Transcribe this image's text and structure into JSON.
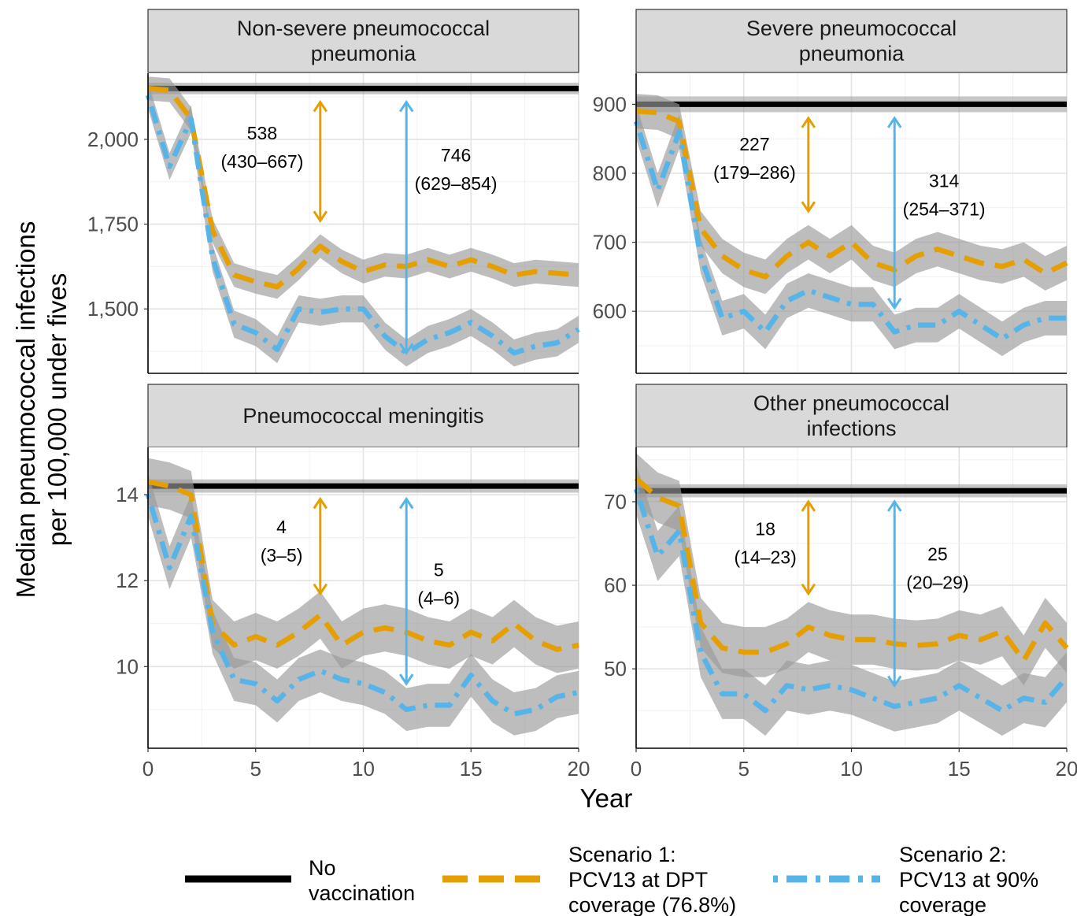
{
  "chart_data": {
    "type": "line",
    "xlabel": "Year",
    "ylabel": "Median pneumococcal infections per 100,000 under fives",
    "ylabel_lines": [
      "Median pneumococcal infections",
      "per 100,000 under fives"
    ],
    "x_ticks": [
      "0",
      "5",
      "10",
      "15",
      "20"
    ],
    "colors": {
      "no_vaccination": "#000000",
      "scenario1": "#E69F00",
      "scenario2": "#56B4E9",
      "ribbon": "#999999"
    },
    "legend": [
      {
        "key": "none",
        "lines": [
          "No",
          "vaccination"
        ]
      },
      {
        "key": "s1",
        "lines": [
          "Scenario 1:",
          "PCV13 at DPT",
          "coverage (76.8%)"
        ]
      },
      {
        "key": "s2",
        "lines": [
          "Scenario 2:",
          "PCV13 at 90%",
          "coverage"
        ]
      }
    ],
    "panels": [
      {
        "title_lines": [
          "Non-severe pneumococcal",
          "pneumonia"
        ],
        "ylim": [
          1310,
          2195
        ],
        "y_ticks": [
          1500,
          1750,
          2000
        ],
        "y_tick_labels": [
          "1,500",
          "1,750",
          "2,000"
        ],
        "minor_y_ticks": [
          1375,
          1625,
          1875,
          2125
        ],
        "none": {
          "value": 2150,
          "lo": 2140,
          "hi": 2160
        },
        "s1": {
          "values": [
            2150,
            2145,
            2060,
            1730,
            1600,
            1580,
            1565,
            1620,
            1685,
            1640,
            1610,
            1630,
            1625,
            1645,
            1625,
            1645,
            1625,
            1600,
            1610,
            1605,
            1600
          ],
          "band": 35
        },
        "s2": {
          "values": [
            2130,
            1920,
            2060,
            1650,
            1455,
            1430,
            1380,
            1500,
            1490,
            1500,
            1500,
            1420,
            1370,
            1410,
            1430,
            1460,
            1420,
            1370,
            1390,
            1400,
            1440
          ],
          "band": 40
        },
        "annotations": [
          {
            "x": 8,
            "y_top": 2110,
            "y_bottom": 1760,
            "lines": [
              "538",
              "(430–667)"
            ],
            "text_x": 5.3,
            "text_y": 2000,
            "color": "#E69F00"
          },
          {
            "x": 12,
            "y_top": 2110,
            "y_bottom": 1370,
            "lines": [
              "746",
              "(629–854)"
            ],
            "text_x": 14.3,
            "text_y": 1935,
            "color": "#56B4E9"
          }
        ]
      },
      {
        "title_lines": [
          "Severe pneumococcal",
          "pneumonia"
        ],
        "ylim": [
          510,
          945
        ],
        "y_ticks": [
          600,
          700,
          800,
          900
        ],
        "y_tick_labels": [
          "600",
          "700",
          "800",
          "900"
        ],
        "minor_y_ticks": [
          550,
          650,
          750,
          850
        ],
        "none": {
          "value": 900,
          "lo": 892,
          "hi": 908
        },
        "s1": {
          "values": [
            890,
            888,
            875,
            720,
            680,
            660,
            650,
            680,
            700,
            680,
            700,
            670,
            660,
            680,
            690,
            680,
            670,
            665,
            675,
            655,
            670
          ],
          "band": 25
        },
        "s2": {
          "values": [
            875,
            775,
            860,
            680,
            590,
            600,
            570,
            615,
            630,
            620,
            610,
            610,
            570,
            580,
            580,
            600,
            580,
            560,
            580,
            590,
            590
          ],
          "band": 25
        },
        "annotations": [
          {
            "x": 8,
            "y_top": 880,
            "y_bottom": 745,
            "lines": [
              "227",
              "(179–286)"
            ],
            "text_x": 5.5,
            "text_y": 833,
            "color": "#E69F00"
          },
          {
            "x": 12,
            "y_top": 880,
            "y_bottom": 605,
            "lines": [
              "314",
              "(254–371)"
            ],
            "text_x": 14.3,
            "text_y": 780,
            "color": "#56B4E9"
          }
        ]
      },
      {
        "title_lines": [
          "Pneumococcal meningitis"
        ],
        "ylim": [
          8.1,
          15.1
        ],
        "y_ticks": [
          10,
          12,
          14
        ],
        "y_tick_labels": [
          "10",
          "12",
          "14"
        ],
        "minor_y_ticks": [
          9,
          11,
          13,
          15
        ],
        "none": {
          "value": 14.2,
          "lo": 14.1,
          "hi": 14.3
        },
        "s1": {
          "values": [
            14.3,
            14.2,
            14.0,
            11.0,
            10.5,
            10.7,
            10.5,
            10.8,
            11.2,
            10.5,
            10.8,
            10.9,
            10.8,
            10.6,
            10.5,
            10.8,
            10.6,
            11.0,
            10.6,
            10.4,
            10.5
          ],
          "band": 0.55
        },
        "s2": {
          "values": [
            14.0,
            12.3,
            13.5,
            10.8,
            9.7,
            9.6,
            9.2,
            9.7,
            9.9,
            9.7,
            9.6,
            9.4,
            9.0,
            9.1,
            9.1,
            9.8,
            9.2,
            8.9,
            9.0,
            9.3,
            9.4
          ],
          "band": 0.5
        },
        "annotations": [
          {
            "x": 8,
            "y_top": 13.9,
            "y_bottom": 11.7,
            "lines": [
              "4",
              "(3–5)"
            ],
            "text_x": 6.2,
            "text_y": 13.1,
            "color": "#E69F00"
          },
          {
            "x": 12,
            "y_top": 13.9,
            "y_bottom": 9.6,
            "lines": [
              "5",
              "(4–6)"
            ],
            "text_x": 13.5,
            "text_y": 12.1,
            "color": "#56B4E9"
          }
        ]
      },
      {
        "title_lines": [
          "Other pneumococcal",
          "infections"
        ],
        "ylim": [
          40.5,
          76.5
        ],
        "y_ticks": [
          50,
          60,
          70
        ],
        "y_tick_labels": [
          "50",
          "60",
          "70"
        ],
        "minor_y_ticks": [
          45,
          55,
          65,
          75
        ],
        "none": {
          "value": 71.3,
          "lo": 70.8,
          "hi": 71.8
        },
        "s1": {
          "values": [
            72.8,
            70.5,
            69.5,
            55.5,
            52.5,
            52.0,
            52.0,
            53.0,
            55.0,
            54.0,
            53.5,
            53.5,
            53.0,
            52.8,
            53.0,
            54.0,
            53.5,
            54.5,
            51.0,
            55.5,
            52.5
          ],
          "band": 3.0
        },
        "s2": {
          "values": [
            71.5,
            63.5,
            66.5,
            52.0,
            47.0,
            47.0,
            45.0,
            48.0,
            47.5,
            48.0,
            47.5,
            46.5,
            45.5,
            46.0,
            46.5,
            48.0,
            46.5,
            45.0,
            46.5,
            46.0,
            49.0
          ],
          "band": 3.0
        },
        "annotations": [
          {
            "x": 8,
            "y_top": 70,
            "y_bottom": 59,
            "lines": [
              "18",
              "(14–23)"
            ],
            "text_x": 6.0,
            "text_y": 66,
            "color": "#E69F00"
          },
          {
            "x": 12,
            "y_top": 70,
            "y_bottom": 48,
            "lines": [
              "25",
              "(20–29)"
            ],
            "text_x": 14.0,
            "text_y": 63,
            "color": "#56B4E9"
          }
        ]
      }
    ]
  }
}
